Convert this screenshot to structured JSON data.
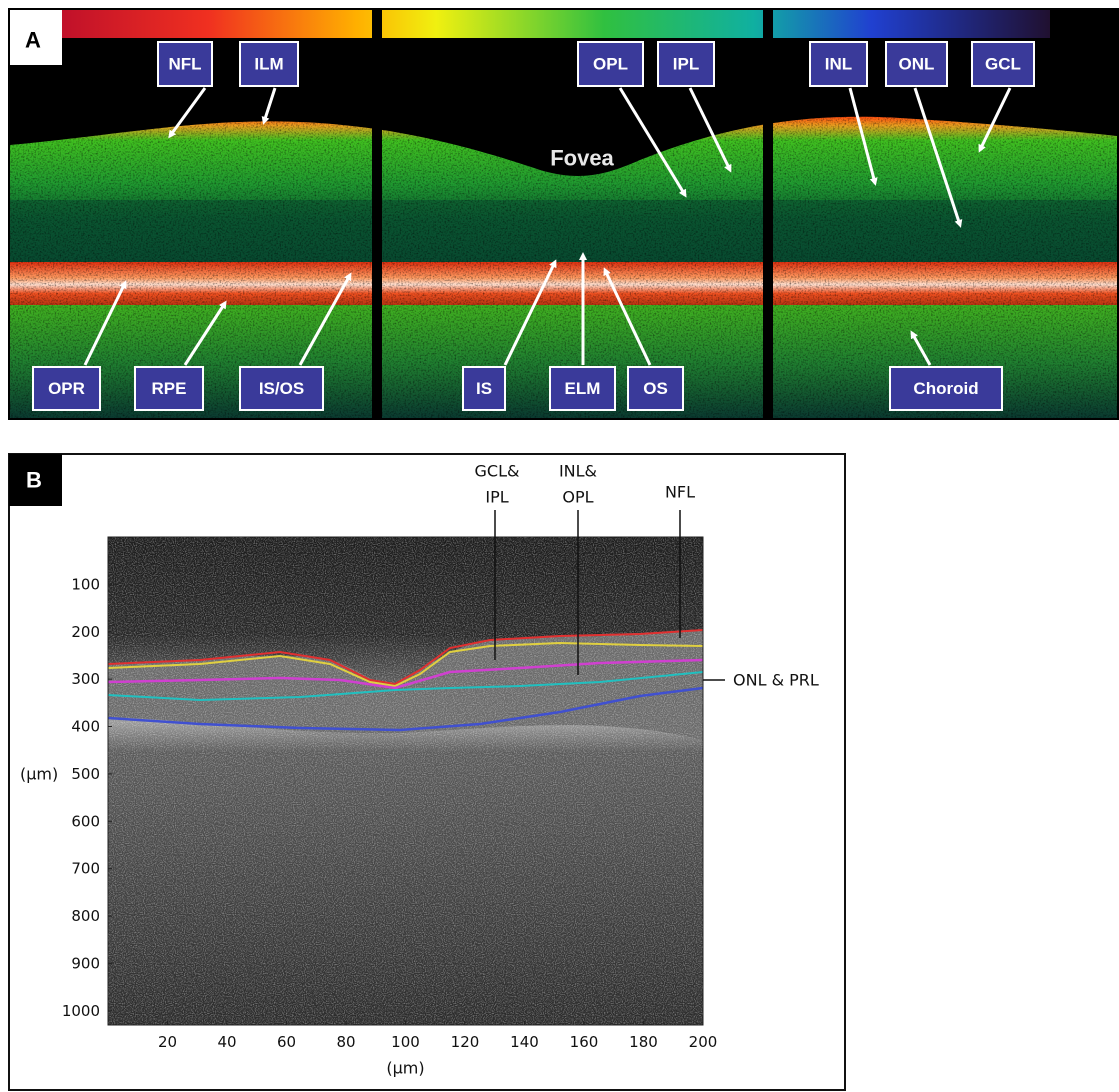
{
  "panel_a": {
    "label": "A",
    "fovea": "Fovea",
    "labels": [
      "NFL",
      "ILM",
      "OPL",
      "IPL",
      "INL",
      "ONL",
      "GCL",
      "OPR",
      "RPE",
      "IS/OS",
      "IS",
      "ELM",
      "OS",
      "Choroid"
    ]
  },
  "panel_b": {
    "label": "B",
    "y_axis_label": "(µm)",
    "x_axis_label": "(µm)",
    "xlim": [
      0,
      200
    ],
    "ylim": [
      0,
      1030
    ],
    "xticks": [
      20,
      40,
      60,
      80,
      100,
      120,
      140,
      160,
      180,
      200
    ],
    "yticks": [
      100,
      200,
      300,
      400,
      500,
      600,
      700,
      800,
      900,
      1000
    ],
    "layer_labels": [
      {
        "lines": [
          "GCL&",
          "IPL"
        ]
      },
      {
        "lines": [
          "INL&",
          "OPL"
        ]
      },
      {
        "lines": [
          "NFL"
        ]
      },
      {
        "lines": [
          "ONL & PRL"
        ]
      }
    ]
  }
}
